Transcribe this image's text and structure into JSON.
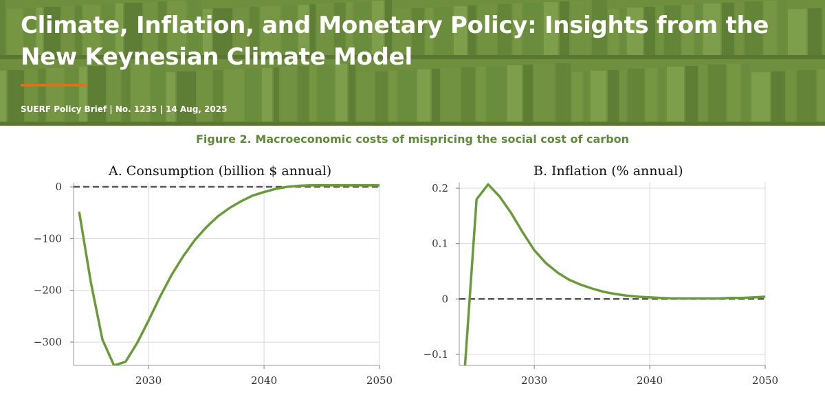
{
  "banner": {
    "title": "Climate, Inflation, and Monetary Policy: Insights from the New Keynesian Climate Model",
    "meta": "SUERF Policy Brief | No. 1235 | 14 Aug, 2025",
    "background_color": "#6f8f3f",
    "accent_color": "#e0701b"
  },
  "figure": {
    "caption": "Figure 2. Macroeconomic costs of mispricing the social cost of carbon"
  },
  "chart_data": [
    {
      "type": "line",
      "title": "A. Consumption (billion $ annual)",
      "xlabel": "",
      "ylabel": "",
      "xlim": [
        2023.5,
        2050
      ],
      "ylim": [
        -345,
        8
      ],
      "x_ticks": [
        2030,
        2040,
        2050
      ],
      "y_ticks": [
        0,
        -100,
        -200,
        -300
      ],
      "x_tick_labels": [
        "2030",
        "2040",
        "2050"
      ],
      "y_tick_labels": [
        "0",
        "−100",
        "−200",
        "−300"
      ],
      "grid": true,
      "line_color": "#6a9a3a",
      "zero_line": {
        "y": 0,
        "style": "dashed",
        "color": "#555555"
      },
      "series": [
        {
          "x": [
            2024,
            2025,
            2026,
            2027,
            2028,
            2029,
            2030,
            2031,
            2032,
            2033,
            2034,
            2035,
            2036,
            2037,
            2038,
            2039,
            2040,
            2041,
            2042,
            2043,
            2044,
            2045,
            2046,
            2047,
            2048,
            2049,
            2050
          ],
          "y": [
            -50,
            -185,
            -295,
            -345,
            -338,
            -302,
            -258,
            -212,
            -170,
            -134,
            -103,
            -78,
            -57,
            -41,
            -28,
            -17,
            -10,
            -4,
            0,
            2,
            3,
            3,
            3,
            3,
            3,
            3,
            3
          ]
        }
      ]
    },
    {
      "type": "line",
      "title": "B. Inflation (% annual)",
      "xlabel": "",
      "ylabel": "",
      "xlim": [
        2023.5,
        2050
      ],
      "ylim": [
        -0.12,
        0.21
      ],
      "x_ticks": [
        2030,
        2040,
        2050
      ],
      "y_ticks": [
        0.2,
        0.1,
        0,
        -0.1
      ],
      "x_tick_labels": [
        "2030",
        "2040",
        "2050"
      ],
      "y_tick_labels": [
        "0.2",
        "0.1",
        "0",
        "−0.1"
      ],
      "grid": true,
      "line_color": "#6a9a3a",
      "zero_line": {
        "y": 0,
        "style": "dashed",
        "color": "#555555"
      },
      "series": [
        {
          "x": [
            2024,
            2025,
            2026,
            2027,
            2028,
            2029,
            2030,
            2031,
            2032,
            2033,
            2034,
            2035,
            2036,
            2037,
            2038,
            2039,
            2040,
            2041,
            2042,
            2043,
            2044,
            2045,
            2046,
            2047,
            2048,
            2049,
            2050
          ],
          "y": [
            -0.12,
            0.18,
            0.207,
            0.185,
            0.155,
            0.12,
            0.088,
            0.065,
            0.048,
            0.035,
            0.026,
            0.019,
            0.013,
            0.009,
            0.006,
            0.004,
            0.003,
            0.002,
            0.001,
            0.001,
            0.001,
            0.001,
            0.001,
            0.002,
            0.002,
            0.003,
            0.004
          ]
        }
      ]
    }
  ]
}
